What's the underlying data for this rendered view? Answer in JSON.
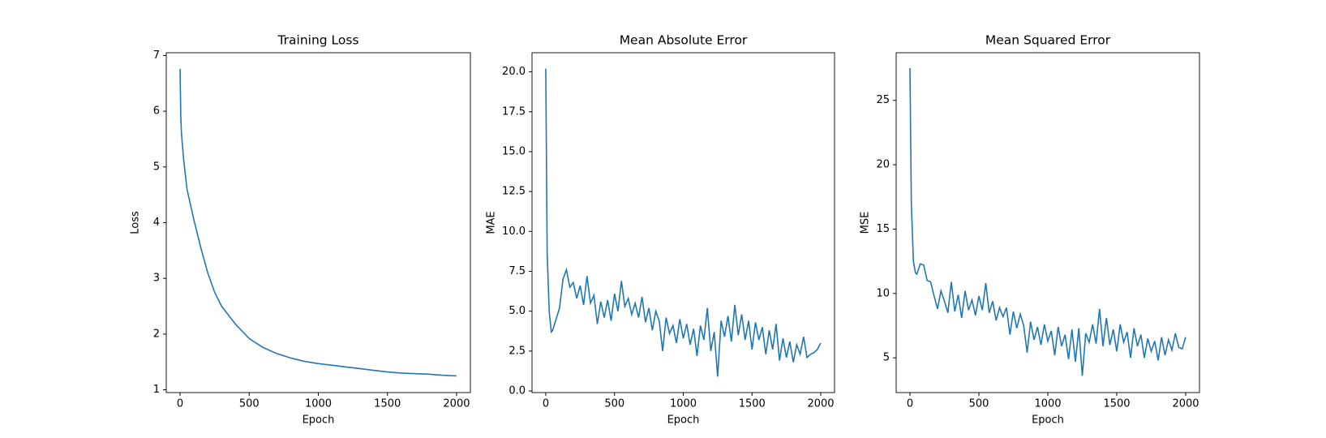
{
  "chart_data": [
    {
      "type": "line",
      "title": "Training Loss",
      "x_label": "Epoch",
      "y_label": "Loss",
      "x": [
        0,
        5,
        10,
        25,
        50,
        100,
        150,
        200,
        250,
        300,
        400,
        500,
        600,
        700,
        800,
        900,
        1000,
        1100,
        1200,
        1300,
        1400,
        1500,
        1600,
        1700,
        1800,
        1900,
        1999
      ],
      "series": [
        {
          "name": "Loss",
          "color": "#1f77b4",
          "values": [
            6.76,
            5.9,
            5.6,
            5.15,
            4.6,
            4.05,
            3.55,
            3.1,
            2.75,
            2.5,
            2.18,
            1.92,
            1.76,
            1.65,
            1.57,
            1.51,
            1.47,
            1.44,
            1.41,
            1.38,
            1.35,
            1.32,
            1.3,
            1.29,
            1.28,
            1.26,
            1.25
          ]
        }
      ],
      "xlim": [
        -100,
        2100
      ],
      "ylim": [
        0.95,
        7.05
      ],
      "xticks": [
        0,
        500,
        1000,
        1500,
        2000
      ],
      "yticks": [
        1,
        2,
        3,
        4,
        5,
        6,
        7
      ]
    },
    {
      "type": "line",
      "title": "Mean Absolute Error",
      "x_label": "Epoch",
      "y_label": "MAE",
      "x": [
        0,
        10,
        25,
        40,
        50,
        75,
        100,
        125,
        150,
        175,
        200,
        225,
        250,
        275,
        300,
        325,
        350,
        375,
        400,
        425,
        450,
        475,
        500,
        525,
        550,
        575,
        600,
        625,
        650,
        675,
        700,
        725,
        750,
        775,
        800,
        825,
        850,
        875,
        900,
        925,
        950,
        975,
        1000,
        1025,
        1050,
        1075,
        1100,
        1125,
        1150,
        1175,
        1200,
        1225,
        1250,
        1275,
        1300,
        1325,
        1350,
        1375,
        1400,
        1425,
        1450,
        1475,
        1500,
        1525,
        1550,
        1575,
        1600,
        1625,
        1650,
        1675,
        1700,
        1725,
        1750,
        1775,
        1800,
        1825,
        1850,
        1875,
        1900,
        1925,
        1950,
        1975,
        1999
      ],
      "series": [
        {
          "name": "MAE",
          "color": "#1f77b4",
          "values": [
            20.2,
            8.7,
            5.0,
            3.7,
            3.8,
            4.5,
            5.2,
            7.0,
            7.6,
            6.5,
            6.8,
            5.8,
            6.6,
            5.4,
            7.2,
            5.5,
            6.0,
            4.2,
            5.6,
            4.6,
            5.7,
            4.4,
            6.1,
            5.0,
            6.9,
            5.3,
            5.8,
            4.8,
            5.5,
            4.6,
            5.9,
            4.3,
            5.2,
            3.8,
            5.0,
            4.4,
            2.5,
            4.6,
            3.6,
            4.1,
            3.0,
            4.5,
            3.3,
            4.2,
            2.9,
            3.9,
            2.2,
            4.1,
            3.2,
            5.2,
            2.5,
            3.7,
            0.9,
            4.4,
            3.4,
            4.7,
            3.1,
            5.4,
            3.5,
            4.8,
            3.2,
            4.4,
            2.6,
            4.3,
            3.2,
            4.0,
            2.3,
            3.8,
            2.6,
            4.2,
            1.9,
            3.3,
            2.1,
            3.1,
            1.8,
            2.9,
            2.3,
            3.4,
            2.1,
            2.3,
            2.4,
            2.6,
            3.0
          ]
        }
      ],
      "xlim": [
        -100,
        2100
      ],
      "ylim": [
        -0.1,
        21.2
      ],
      "xticks": [
        0,
        500,
        1000,
        1500,
        2000
      ],
      "yticks": [
        {
          "value": 0,
          "label": "0.0"
        },
        {
          "value": 2.5,
          "label": "2.5"
        },
        {
          "value": 5,
          "label": "5.0"
        },
        {
          "value": 7.5,
          "label": "7.5"
        },
        {
          "value": 10,
          "label": "10.0"
        },
        {
          "value": 12.5,
          "label": "12.5"
        },
        {
          "value": 15,
          "label": "15.0"
        },
        {
          "value": 17.5,
          "label": "17.5"
        },
        {
          "value": 20,
          "label": "20.0"
        }
      ]
    },
    {
      "type": "line",
      "title": "Mean Squared Error",
      "x_label": "Epoch",
      "y_label": "MSE",
      "x": [
        0,
        10,
        25,
        40,
        50,
        75,
        100,
        125,
        150,
        175,
        200,
        225,
        250,
        275,
        300,
        325,
        350,
        375,
        400,
        425,
        450,
        475,
        500,
        525,
        550,
        575,
        600,
        625,
        650,
        675,
        700,
        725,
        750,
        775,
        800,
        825,
        850,
        875,
        900,
        925,
        950,
        975,
        1000,
        1025,
        1050,
        1075,
        1100,
        1125,
        1150,
        1175,
        1200,
        1225,
        1250,
        1275,
        1300,
        1325,
        1350,
        1375,
        1400,
        1425,
        1450,
        1475,
        1500,
        1525,
        1550,
        1575,
        1600,
        1625,
        1650,
        1675,
        1700,
        1725,
        1750,
        1775,
        1800,
        1825,
        1850,
        1875,
        1900,
        1925,
        1950,
        1975,
        1999
      ],
      "series": [
        {
          "name": "MSE",
          "color": "#1f77b4",
          "values": [
            27.5,
            17,
            12.5,
            11.6,
            11.5,
            12.3,
            12.2,
            11.0,
            10.9,
            9.8,
            8.8,
            10.2,
            9.4,
            8.5,
            10.9,
            8.6,
            9.9,
            8.1,
            10.2,
            8.7,
            9.5,
            8.3,
            9.8,
            8.7,
            10.8,
            8.5,
            9.4,
            7.9,
            8.9,
            8.2,
            8.9,
            6.8,
            8.6,
            7.3,
            8.4,
            7.5,
            5.4,
            7.8,
            6.4,
            7.4,
            6.0,
            7.6,
            6.3,
            7.1,
            5.2,
            7.4,
            5.9,
            6.8,
            4.9,
            7.2,
            4.7,
            7.3,
            3.6,
            6.9,
            6.2,
            7.6,
            6.1,
            8.8,
            5.9,
            8.1,
            6.0,
            7.2,
            5.5,
            7.6,
            6.2,
            7.0,
            5.0,
            7.3,
            5.9,
            6.8,
            5.0,
            6.5,
            5.5,
            6.3,
            4.8,
            6.6,
            5.2,
            6.4,
            5.6,
            6.9,
            5.8,
            5.7,
            6.6
          ]
        }
      ],
      "xlim": [
        -100,
        2100
      ],
      "ylim": [
        2.3,
        28.7
      ],
      "xticks": [
        0,
        500,
        1000,
        1500,
        2000
      ],
      "yticks": [
        5,
        10,
        15,
        20,
        25
      ]
    }
  ]
}
